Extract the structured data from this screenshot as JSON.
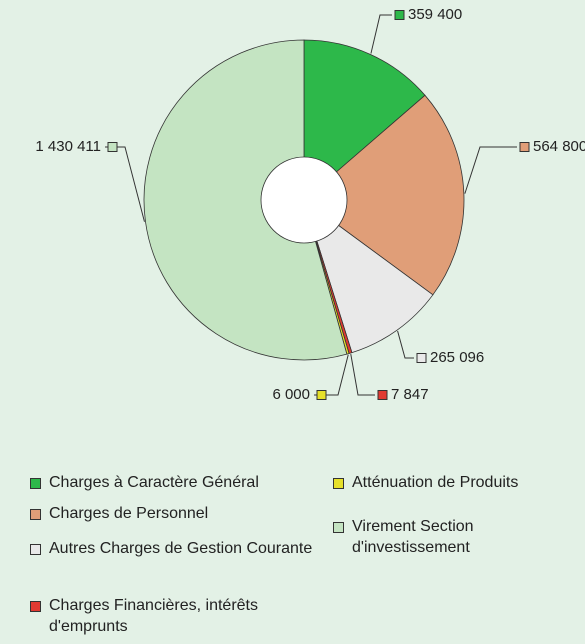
{
  "chart_data": {
    "type": "pie",
    "categories": [
      "Charges à Caractère Général",
      "Charges de Personnel",
      "Autres Charges de Gestion Courante",
      "Charges Financières, intérêts d'emprunts",
      "Atténuation de Produits",
      "Virement Section d'investissement"
    ],
    "values": [
      359400,
      564800,
      265096,
      7847,
      6000,
      1430411
    ],
    "value_labels": [
      "359 400",
      "564 800",
      "265 096",
      "7 847",
      "6 000",
      "1 430 411"
    ],
    "colors": [
      "#2db84a",
      "#e09e78",
      "#e9e9e9",
      "#e03a32",
      "#e6e02a",
      "#c4e4c2"
    ]
  }
}
